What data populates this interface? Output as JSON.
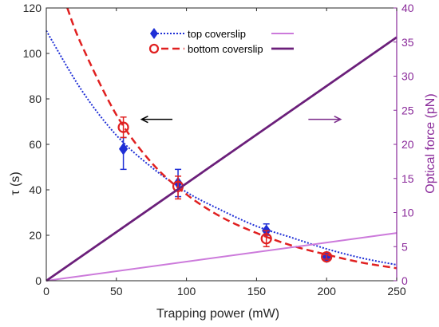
{
  "chart_data": {
    "type": "line",
    "xlabel": "Trapping power (mW)",
    "ylabel_left": "τ (s)",
    "ylabel_right": "Optical force (pN)",
    "xlim": [
      0,
      250
    ],
    "ylim_left": [
      0,
      120
    ],
    "ylim_right": [
      0,
      40
    ],
    "x_ticks": [
      "0",
      "50",
      "100",
      "150",
      "200",
      "250"
    ],
    "y_left_ticks": [
      "0",
      "20",
      "40",
      "60",
      "80",
      "100",
      "120"
    ],
    "y_right_ticks": [
      "0",
      "5",
      "10",
      "15",
      "20",
      "25",
      "30",
      "35",
      "40"
    ],
    "grid": false,
    "legend": {
      "placement": "top-center",
      "entries": [
        {
          "label": "top coverslip",
          "marker": "diamond",
          "color": "#1f2fd6",
          "line": "dotted"
        },
        {
          "label": "bottom coverslip",
          "marker": "circle",
          "color": "#e02020",
          "line": "dashed"
        },
        {
          "label": "",
          "marker": "none",
          "color": "#cc7adb",
          "line": "solid"
        },
        {
          "label": "",
          "marker": "none",
          "color": "#6b1f7a",
          "line": "solid-thick"
        }
      ]
    },
    "series": [
      {
        "name": "top coverslip",
        "axis": "left",
        "color": "#1f2fd6",
        "points": [
          {
            "x": 55,
            "y": 58,
            "err_low": 49,
            "err_high": 63
          },
          {
            "x": 94,
            "y": 43,
            "err_low": 37,
            "err_high": 49
          },
          {
            "x": 157,
            "y": 22,
            "err_low": 20,
            "err_high": 25
          },
          {
            "x": 200,
            "y": 10.5,
            "err_low": 9.5,
            "err_high": 11.5
          }
        ],
        "fit_curve": [
          [
            0,
            110
          ],
          [
            25,
            84
          ],
          [
            50,
            64
          ],
          [
            75,
            50
          ],
          [
            100,
            39
          ],
          [
            125,
            31
          ],
          [
            150,
            24
          ],
          [
            175,
            19
          ],
          [
            200,
            14
          ],
          [
            225,
            10
          ],
          [
            250,
            7
          ]
        ]
      },
      {
        "name": "bottom coverslip",
        "axis": "left",
        "color": "#e02020",
        "points": [
          {
            "x": 55,
            "y": 67.5,
            "err_low": 63,
            "err_high": 72
          },
          {
            "x": 94,
            "y": 41.5,
            "err_low": 36,
            "err_high": 46
          },
          {
            "x": 157,
            "y": 18.5,
            "err_low": 15,
            "err_high": 22
          },
          {
            "x": 200,
            "y": 10.5,
            "err_low": 9.5,
            "err_high": 11.5
          }
        ],
        "fit_curve": [
          [
            15,
            120
          ],
          [
            25,
            104
          ],
          [
            50,
            73
          ],
          [
            75,
            52
          ],
          [
            100,
            38
          ],
          [
            125,
            28
          ],
          [
            150,
            21
          ],
          [
            175,
            15.5
          ],
          [
            200,
            11.5
          ],
          [
            225,
            8
          ],
          [
            250,
            5.5
          ]
        ]
      },
      {
        "name": "",
        "axis": "right",
        "color": "#cc7adb",
        "line": [
          [
            0,
            0
          ],
          [
            250,
            7
          ]
        ]
      },
      {
        "name": "",
        "axis": "right",
        "color": "#6b1f7a",
        "line": [
          [
            0,
            0
          ],
          [
            250,
            35.7
          ]
        ]
      }
    ],
    "annotations": [
      {
        "kind": "arrow",
        "direction": "left",
        "color": "#000000",
        "from": [
          90,
          71
        ],
        "to": [
          68,
          71
        ]
      },
      {
        "kind": "arrow",
        "direction": "right",
        "color": "#7a2a8a",
        "from": [
          187,
          71
        ],
        "to": [
          210,
          71
        ]
      }
    ]
  }
}
